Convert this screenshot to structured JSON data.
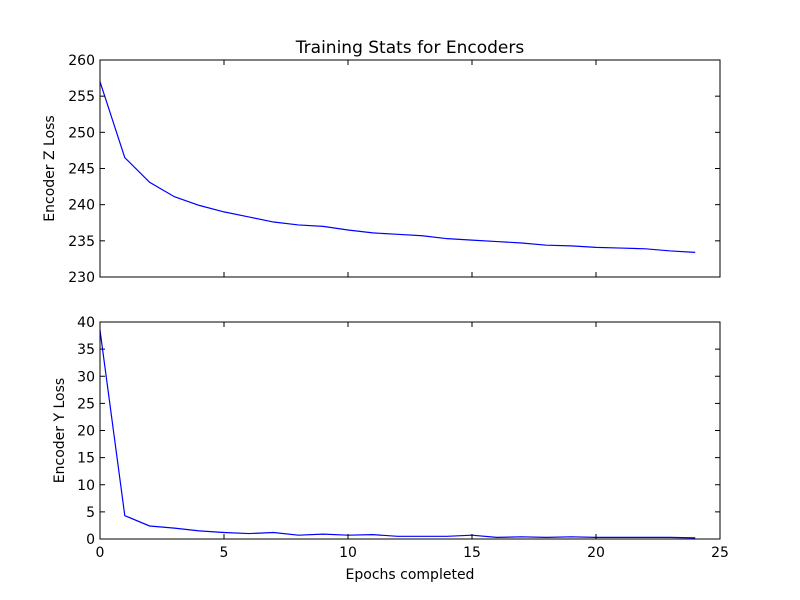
{
  "figure": {
    "title": "Training Stats for Encoders",
    "xlabel": "Epochs completed"
  },
  "colors": {
    "line": "#0000ff",
    "axes": "#000000",
    "background": "#ffffff"
  },
  "chart_data": [
    {
      "type": "line",
      "ylabel": "Encoder Z Loss",
      "xlim": [
        0,
        25
      ],
      "ylim": [
        230,
        260
      ],
      "xticks": [
        0,
        5,
        10,
        15,
        20,
        25
      ],
      "yticks": [
        230,
        235,
        240,
        245,
        250,
        255,
        260
      ],
      "x_ticklabels_visible": false,
      "grid": false,
      "x": [
        0,
        1,
        2,
        3,
        4,
        5,
        6,
        7,
        8,
        9,
        10,
        11,
        12,
        13,
        14,
        15,
        16,
        17,
        18,
        19,
        20,
        21,
        22,
        23,
        24
      ],
      "y": [
        257.0,
        246.5,
        243.1,
        241.1,
        239.9,
        239.0,
        238.3,
        237.6,
        237.2,
        237.0,
        236.5,
        236.1,
        235.9,
        235.7,
        235.3,
        235.1,
        234.9,
        234.7,
        234.4,
        234.3,
        234.1,
        234.0,
        233.9,
        233.6,
        233.4
      ]
    },
    {
      "type": "line",
      "ylabel": "Encoder Y Loss",
      "xlim": [
        0,
        25
      ],
      "ylim": [
        0,
        40
      ],
      "xticks": [
        0,
        5,
        10,
        15,
        20,
        25
      ],
      "yticks": [
        0,
        5,
        10,
        15,
        20,
        25,
        30,
        35,
        40
      ],
      "x_ticklabels_visible": true,
      "grid": false,
      "x": [
        0,
        1,
        2,
        3,
        4,
        5,
        6,
        7,
        8,
        9,
        10,
        11,
        12,
        13,
        14,
        15,
        16,
        17,
        18,
        19,
        20,
        21,
        22,
        23,
        24
      ],
      "y": [
        38.5,
        4.3,
        2.4,
        2.0,
        1.5,
        1.2,
        1.0,
        1.2,
        0.7,
        0.9,
        0.7,
        0.8,
        0.5,
        0.5,
        0.5,
        0.7,
        0.3,
        0.4,
        0.3,
        0.4,
        0.3,
        0.3,
        0.3,
        0.3,
        0.2
      ]
    }
  ]
}
